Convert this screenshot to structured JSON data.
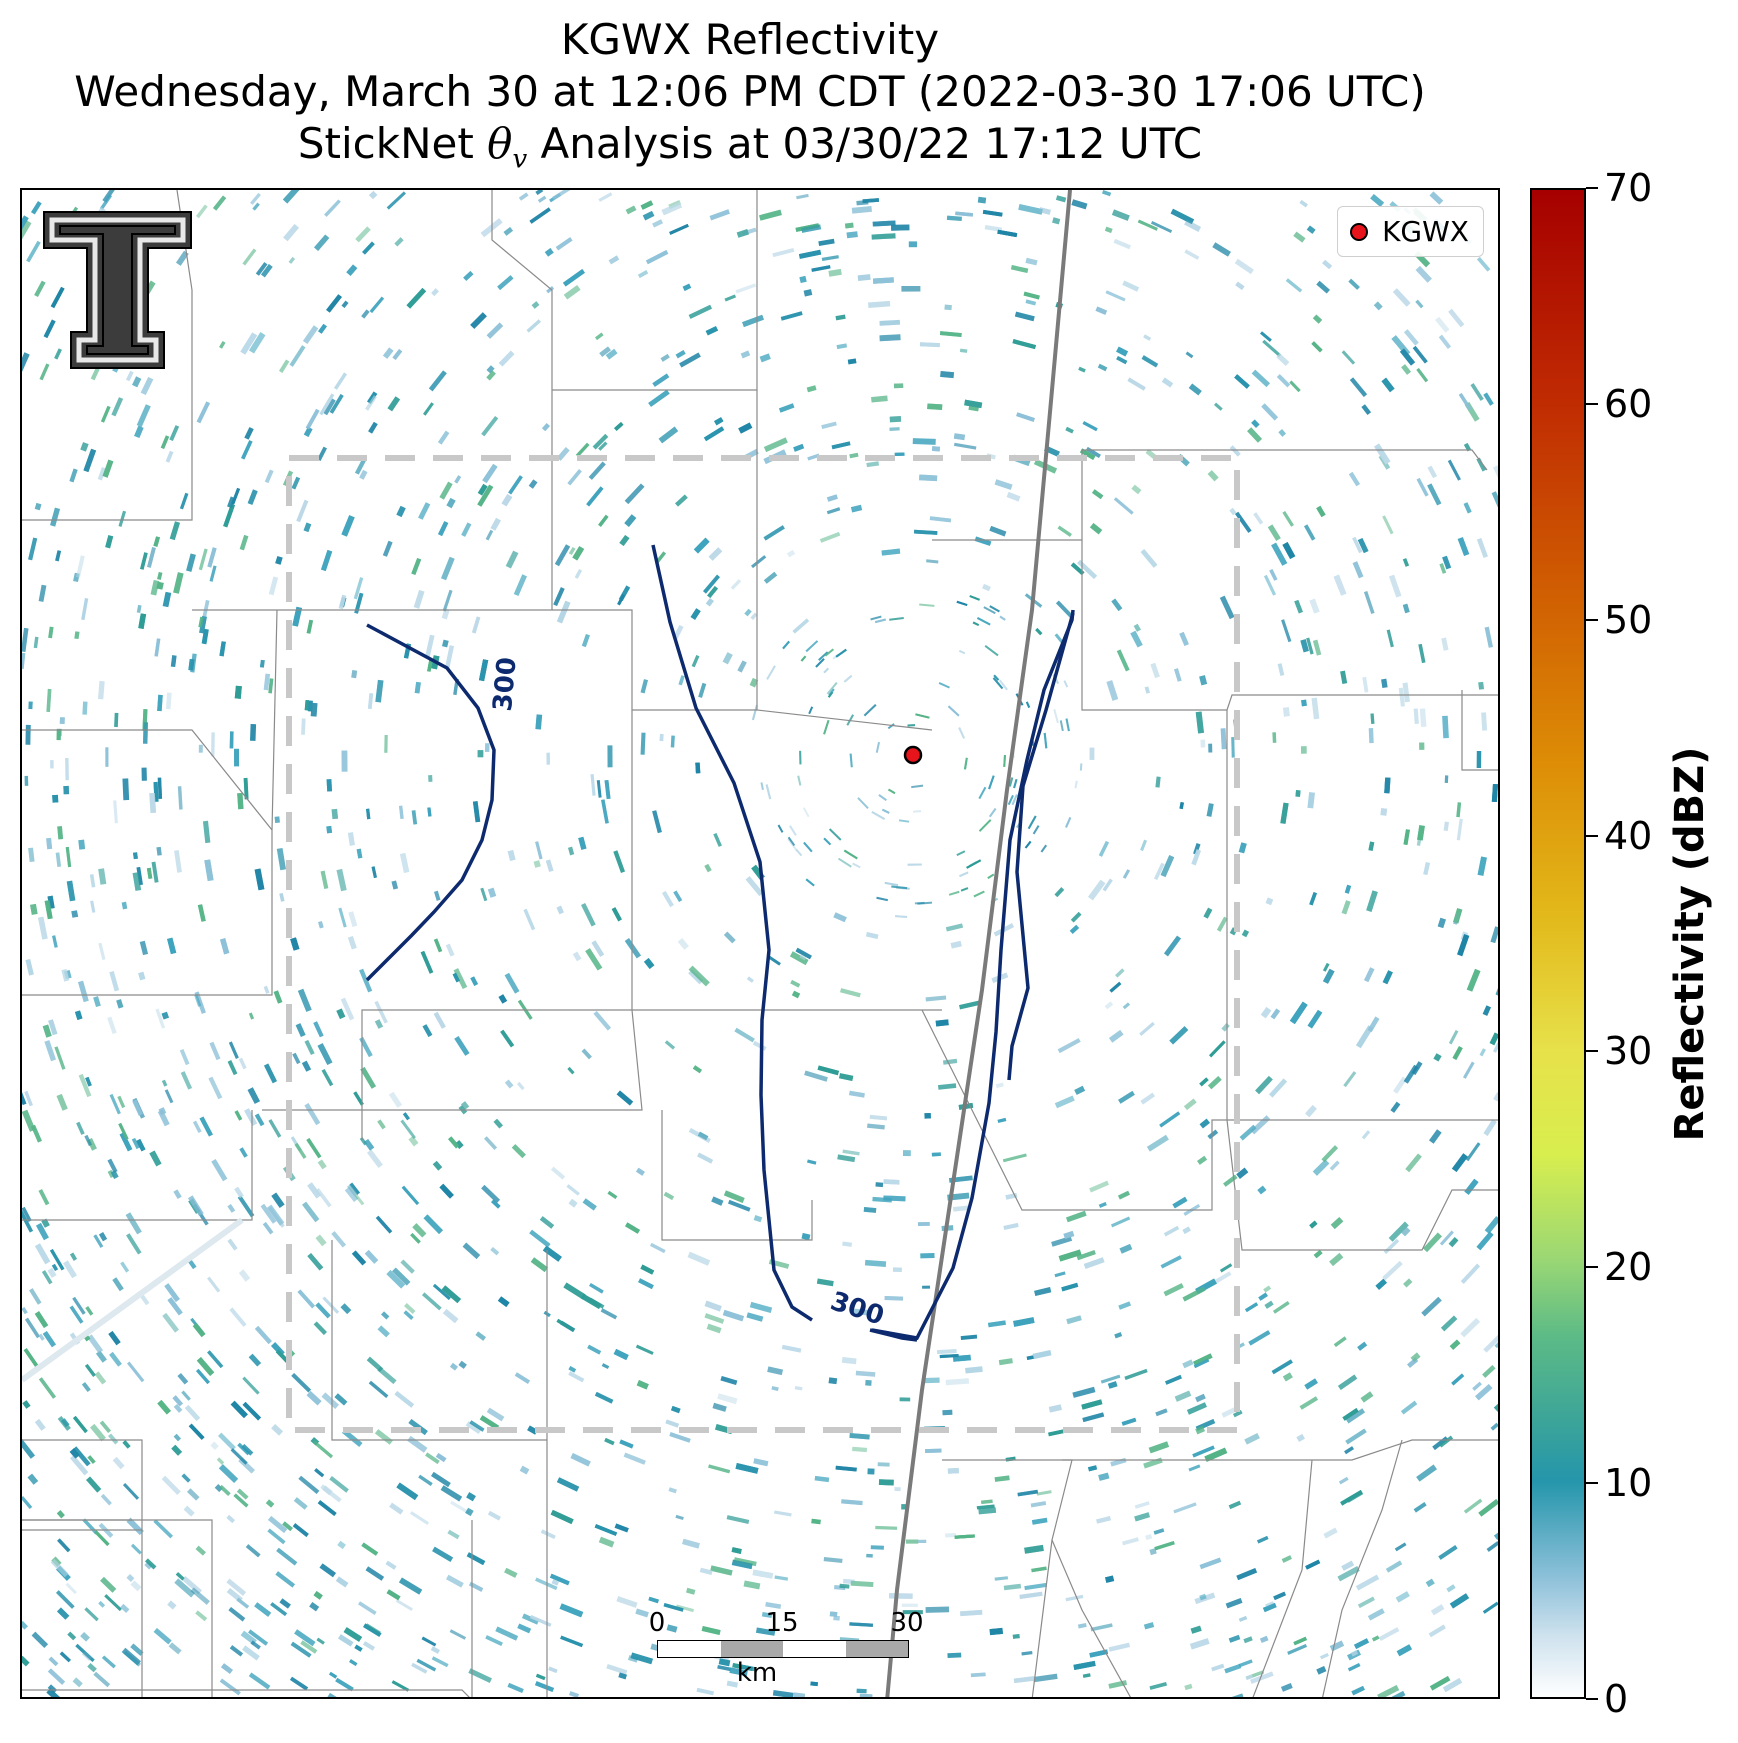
{
  "title": {
    "line1": "KGWX Reflectivity",
    "line2": "Wednesday, March 30 at 12:06 PM CDT (2022-03-30 17:06 UTC)",
    "line3_prefix": "StickNet ",
    "line3_symbol": "θ",
    "line3_subscript": "v",
    "line3_suffix": " Analysis at 03/30/22 17:12 UTC"
  },
  "legend": {
    "label": "KGWX",
    "marker_color": "#e8141b"
  },
  "radar_site": {
    "name": "KGWX"
  },
  "contours": {
    "label": "300",
    "color": "#0d2a6f"
  },
  "scale_bar": {
    "ticks": [
      "0",
      "15",
      "30"
    ],
    "unit": "km"
  },
  "colorbar": {
    "label": "Reflectivity (dBZ)",
    "min": 0,
    "max": 70,
    "ticks": [
      "0",
      "10",
      "20",
      "30",
      "40",
      "50",
      "60",
      "70"
    ]
  }
}
